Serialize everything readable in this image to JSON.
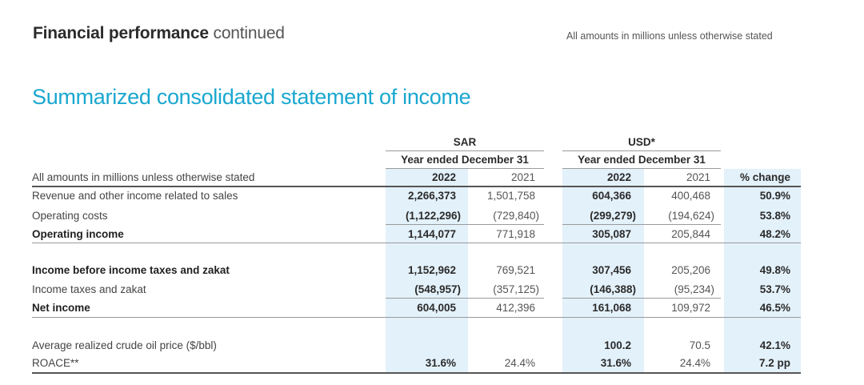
{
  "header": {
    "title_bold": "Financial performance",
    "title_light": "continued",
    "note": "All amounts in millions unless otherwise stated"
  },
  "section_title": "Summarized consolidated statement of income",
  "table": {
    "currency_sar": "SAR",
    "currency_usd": "USD*",
    "period_sar": "Year ended December 31",
    "period_usd": "Year ended December 31",
    "label_header": "All amounts in millions unless otherwise stated",
    "year_current": "2022",
    "year_prior": "2021",
    "pct_header": "% change",
    "rows": [
      {
        "label": "Revenue and other income related to sales",
        "bold": false,
        "sar_2022": "2,266,373",
        "sar_2021": "1,501,758",
        "usd_2022": "604,366",
        "usd_2021": "400,468",
        "pct": "50.9%"
      },
      {
        "label": "Operating costs",
        "bold": false,
        "sar_2022": "(1,122,296)",
        "sar_2021": "(729,840)",
        "usd_2022": "(299,279)",
        "usd_2021": "(194,624)",
        "pct": "53.8%"
      },
      {
        "label": "Operating income",
        "bold": true,
        "sar_2022": "1,144,077",
        "sar_2021": "771,918",
        "usd_2022": "305,087",
        "usd_2021": "205,844",
        "pct": "48.2%"
      },
      {
        "label": "Income before income taxes and zakat",
        "bold": true,
        "sar_2022": "1,152,962",
        "sar_2021": "769,521",
        "usd_2022": "307,456",
        "usd_2021": "205,206",
        "pct": "49.8%"
      },
      {
        "label": "Income taxes and zakat",
        "bold": false,
        "sar_2022": "(548,957)",
        "sar_2021": "(357,125)",
        "usd_2022": "(146,388)",
        "usd_2021": "(95,234)",
        "pct": "53.7%"
      },
      {
        "label": "Net income",
        "bold": true,
        "sar_2022": "604,005",
        "sar_2021": "412,396",
        "usd_2022": "161,068",
        "usd_2021": "109,972",
        "pct": "46.5%"
      },
      {
        "label": "Average realized crude oil price ($/bbl)",
        "bold": false,
        "sar_2022": "",
        "sar_2021": "",
        "usd_2022": "100.2",
        "usd_2021": "70.5",
        "pct": "42.1%"
      },
      {
        "label": "ROACE**",
        "bold": false,
        "sar_2022": "31.6%",
        "sar_2021": "24.4%",
        "usd_2022": "31.6%",
        "usd_2021": "24.4%",
        "pct": "7.2 pp"
      }
    ]
  }
}
